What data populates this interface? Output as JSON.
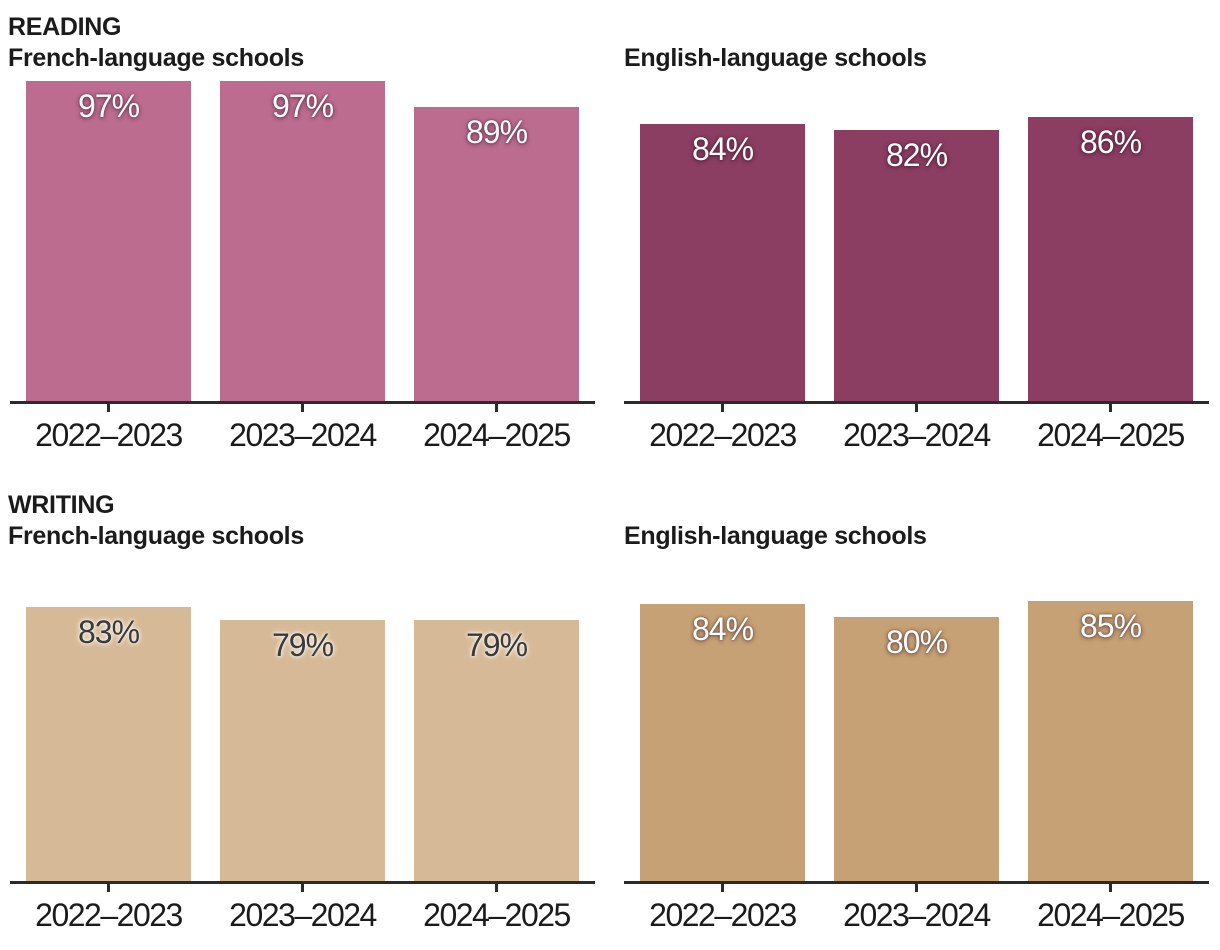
{
  "page": {
    "background": "#ffffff",
    "text_color": "#1b1b1b",
    "axis_color": "#2b2b2b"
  },
  "sections": [
    {
      "kicker": "READING",
      "left_title": "French-language schools",
      "right_title": "English-language schools"
    },
    {
      "kicker": "WRITING",
      "left_title": "French-language schools",
      "right_title": "English-language schools"
    }
  ],
  "chart_data": [
    {
      "id": "reading-french",
      "type": "bar",
      "title": "READING — French-language schools",
      "categories": [
        "2022–2023",
        "2023–2024",
        "2024–2025"
      ],
      "values": [
        97,
        97,
        89
      ],
      "value_labels": [
        "97%",
        "97%",
        "89%"
      ],
      "unit": "%",
      "ylim": [
        0,
        100
      ],
      "grid": false,
      "legend": false,
      "bar_color": "#bc6c8f",
      "value_label_color": "#ffffff"
    },
    {
      "id": "reading-english",
      "type": "bar",
      "title": "READING — English-language schools",
      "categories": [
        "2022–2023",
        "2023–2024",
        "2024–2025"
      ],
      "values": [
        84,
        82,
        86
      ],
      "value_labels": [
        "84%",
        "82%",
        "86%"
      ],
      "unit": "%",
      "ylim": [
        0,
        100
      ],
      "grid": false,
      "legend": false,
      "bar_color": "#8b3d62",
      "value_label_color": "#ffffff"
    },
    {
      "id": "writing-french",
      "type": "bar",
      "title": "WRITING — French-language schools",
      "categories": [
        "2022–2023",
        "2023–2024",
        "2024–2025"
      ],
      "values": [
        83,
        79,
        79
      ],
      "value_labels": [
        "83%",
        "79%",
        "79%"
      ],
      "unit": "%",
      "ylim": [
        0,
        100
      ],
      "grid": false,
      "legend": false,
      "bar_color": "#d6ba97",
      "value_label_color": "#3a3a3a"
    },
    {
      "id": "writing-english",
      "type": "bar",
      "title": "WRITING — English-language schools",
      "categories": [
        "2022–2023",
        "2023–2024",
        "2024–2025"
      ],
      "values": [
        84,
        80,
        85
      ],
      "value_labels": [
        "84%",
        "80%",
        "85%"
      ],
      "unit": "%",
      "ylim": [
        0,
        100
      ],
      "grid": false,
      "legend": false,
      "bar_color": "#c6a175",
      "value_label_color": "#ffffff"
    }
  ]
}
